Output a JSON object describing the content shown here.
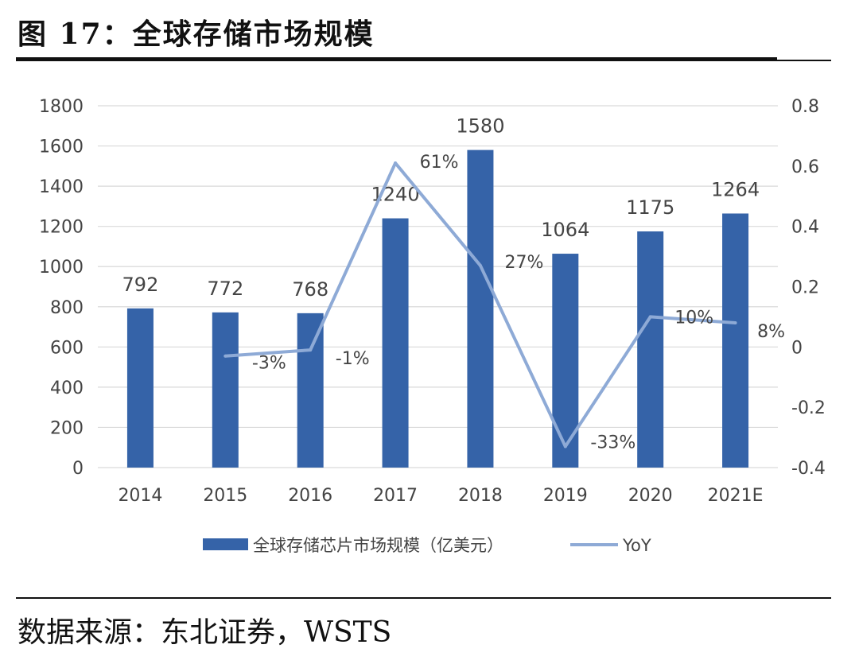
{
  "title": "图 17：全球存储市场规模",
  "source": "数据来源：东北证券，WSTS",
  "colors": {
    "bar": "#3563a8",
    "line": "#8eaad6",
    "grid": "#d9d9d9"
  },
  "chart_data": {
    "type": "bar",
    "categories": [
      "2014",
      "2015",
      "2016",
      "2017",
      "2018",
      "2019",
      "2020",
      "2021E"
    ],
    "series": [
      {
        "name": "全球存储芯片市场规模（亿美元）",
        "type": "bar",
        "axis": "left",
        "values": [
          792,
          772,
          768,
          1240,
          1580,
          1064,
          1175,
          1264
        ],
        "labels": [
          "792",
          "772",
          "768",
          "1240",
          "1580",
          "1064",
          "1175",
          "1264"
        ]
      },
      {
        "name": "YoY",
        "type": "line",
        "axis": "right",
        "values": [
          null,
          -0.03,
          -0.01,
          0.61,
          0.27,
          -0.33,
          0.1,
          0.08
        ],
        "labels": [
          null,
          "-3%",
          "-1%",
          "61%",
          "27%",
          "-33%",
          "10%",
          "8%"
        ]
      }
    ],
    "y_left": {
      "range": [
        0,
        1800
      ],
      "ticks": [
        "0",
        "200",
        "400",
        "600",
        "800",
        "1000",
        "1200",
        "1400",
        "1600",
        "1800"
      ]
    },
    "y_right": {
      "range": [
        -0.4,
        0.8
      ],
      "ticks": [
        "-0.4",
        "-0.2",
        "0",
        "0.2",
        "0.4",
        "0.6",
        "0.8"
      ]
    },
    "grid": true,
    "legend": "bottom"
  }
}
